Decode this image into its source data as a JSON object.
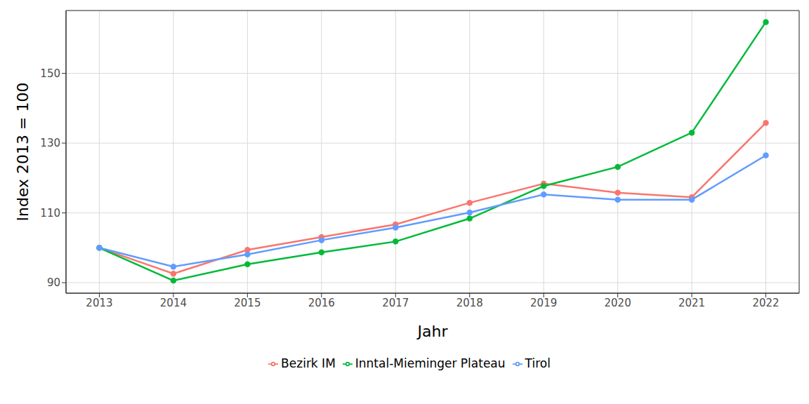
{
  "chart_data": {
    "type": "line",
    "x_label": "Jahr",
    "y_label": "Index  2013  = 100",
    "x": [
      2013,
      2014,
      2015,
      2016,
      2017,
      2018,
      2019,
      2020,
      2021,
      2022
    ],
    "series": [
      {
        "name": "Bezirk IM",
        "color": "#F8766D",
        "values": [
          100,
          92.6,
          99.4,
          103.1,
          106.7,
          112.9,
          118.4,
          115.8,
          114.5,
          135.8
        ]
      },
      {
        "name": "Inntal-Mieminger Plateau",
        "color": "#00BA38",
        "values": [
          100,
          90.6,
          95.3,
          98.7,
          101.8,
          108.4,
          117.7,
          123.2,
          133,
          164.7
        ]
      },
      {
        "name": "Tirol",
        "color": "#619CFF",
        "values": [
          100,
          94.6,
          98.1,
          102.2,
          105.8,
          110.1,
          115.3,
          113.8,
          113.8,
          126.5
        ]
      }
    ],
    "xlim": [
      2012.55,
      2022.45
    ],
    "xticks": [
      2013,
      2014,
      2015,
      2016,
      2017,
      2018,
      2019,
      2020,
      2021,
      2022
    ],
    "ylim": [
      87,
      168
    ],
    "yticks": [
      90,
      110,
      130,
      150
    ],
    "grid": true,
    "legend": "bottom",
    "marker": "circle"
  }
}
